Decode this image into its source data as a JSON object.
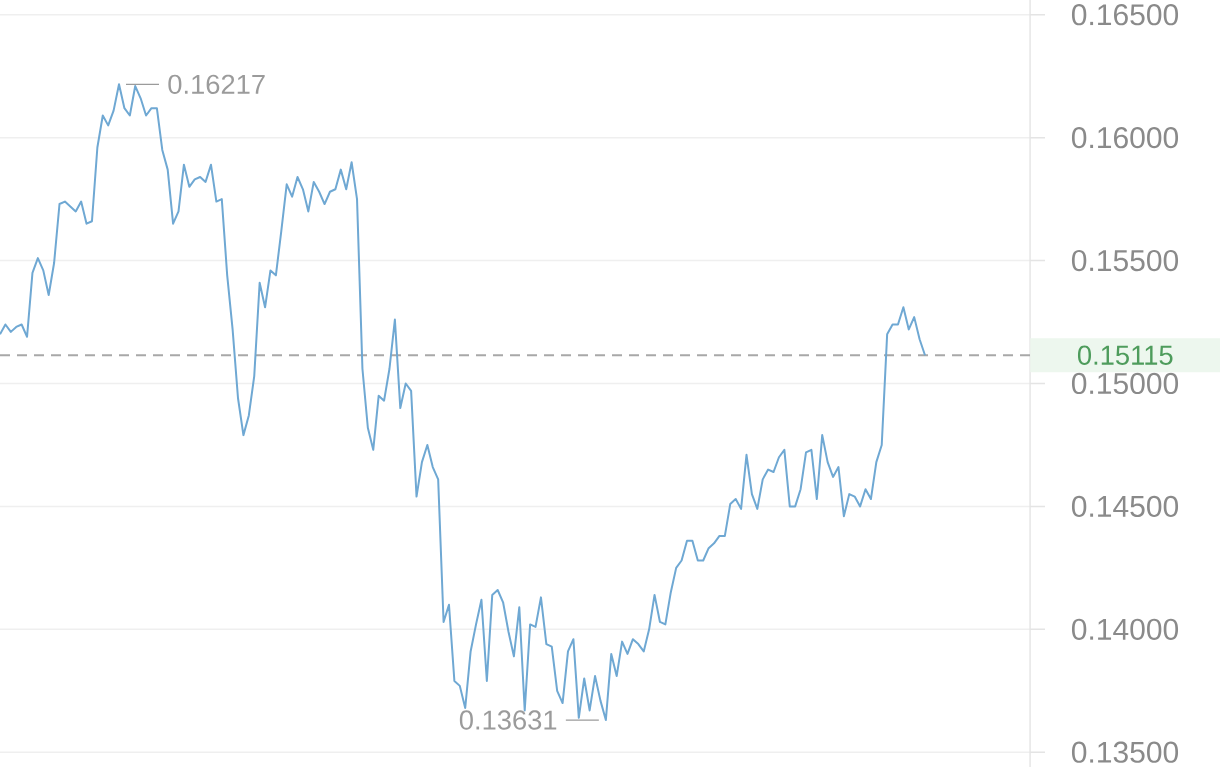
{
  "chart_data": {
    "type": "line",
    "categories": [
      null,
      null,
      null,
      null,
      null,
      null,
      null,
      null,
      null,
      null,
      null,
      null,
      null,
      null,
      null,
      null,
      null,
      null,
      null,
      null,
      null,
      null,
      null,
      null,
      null,
      null,
      null,
      null,
      null,
      null,
      null,
      null,
      null,
      null,
      null,
      null,
      null,
      null,
      null,
      null,
      null,
      null,
      null,
      null,
      null,
      null,
      null,
      null,
      null,
      null,
      null,
      null,
      null,
      null,
      null,
      null,
      null,
      null,
      null,
      null,
      null,
      null,
      null,
      null,
      null,
      null,
      null,
      null,
      null,
      null,
      null,
      null,
      null,
      null,
      null,
      null,
      null,
      null,
      null,
      null,
      null,
      null,
      null,
      null,
      null,
      null,
      null,
      null,
      null,
      null,
      null,
      null,
      null,
      null,
      null,
      null,
      null,
      null,
      null,
      null,
      null,
      null,
      null,
      null,
      null,
      null,
      null,
      null,
      null,
      null,
      null,
      null,
      null,
      null,
      null,
      null,
      null,
      null,
      null,
      null,
      null,
      null,
      null,
      null,
      null,
      null,
      null,
      null,
      null,
      null,
      null,
      null,
      null,
      null,
      null,
      null,
      null,
      null,
      null,
      null,
      null,
      null,
      null,
      null,
      null,
      null,
      null,
      null,
      null,
      null,
      null,
      null,
      null,
      null,
      null,
      null,
      null,
      null,
      null,
      null,
      null,
      null,
      null,
      null,
      null,
      null,
      null,
      null,
      null,
      null,
      null,
      null
    ],
    "series": [
      {
        "color": "#6fa8d3",
        "values": [
          0.152,
          0.1524,
          0.1521,
          0.1523,
          0.1524,
          0.1519,
          0.1545,
          0.1551,
          0.1546,
          0.1536,
          0.1549,
          0.1573,
          0.1574,
          0.1572,
          0.157,
          0.1574,
          0.1565,
          0.1566,
          0.1596,
          0.1609,
          0.1605,
          0.1611,
          0.16217,
          0.1612,
          0.1609,
          0.1621,
          0.1616,
          0.1609,
          0.1612,
          0.1612,
          0.1595,
          0.1587,
          0.1565,
          0.157,
          0.1589,
          0.158,
          0.1583,
          0.1584,
          0.1582,
          0.1589,
          0.1574,
          0.1575,
          0.1544,
          0.1522,
          0.1494,
          0.1479,
          0.1487,
          0.1503,
          0.1541,
          0.1531,
          0.1546,
          0.1544,
          0.1562,
          0.1581,
          0.1576,
          0.1584,
          0.1579,
          0.157,
          0.1582,
          0.1578,
          0.1573,
          0.1578,
          0.1579,
          0.1587,
          0.1579,
          0.159,
          0.1575,
          0.1506,
          0.1482,
          0.1473,
          0.1495,
          0.1493,
          0.1506,
          0.1526,
          0.149,
          0.15,
          0.1497,
          0.1454,
          0.1468,
          0.1475,
          0.1466,
          0.1461,
          0.1403,
          0.141,
          0.1379,
          0.1377,
          0.1368,
          0.1391,
          0.1402,
          0.1412,
          0.1379,
          0.1414,
          0.1416,
          0.1411,
          0.1399,
          0.1389,
          0.1409,
          0.1367,
          0.1402,
          0.1401,
          0.1413,
          0.1394,
          0.1393,
          0.1375,
          0.137,
          0.1391,
          0.1396,
          0.1364,
          0.138,
          0.1367,
          0.1381,
          0.1371,
          0.13631,
          0.139,
          0.1381,
          0.1395,
          0.139,
          0.1396,
          0.1394,
          0.1391,
          0.14,
          0.1414,
          0.1403,
          0.1402,
          0.1415,
          0.1425,
          0.1428,
          0.1436,
          0.1436,
          0.1428,
          0.1428,
          0.1433,
          0.1435,
          0.1438,
          0.1438,
          0.1451,
          0.1453,
          0.1449,
          0.1471,
          0.1455,
          0.1449,
          0.1461,
          0.1465,
          0.1464,
          0.147,
          0.1473,
          0.145,
          0.145,
          0.1457,
          0.1472,
          0.1473,
          0.1453,
          0.1479,
          0.1468,
          0.1462,
          0.1466,
          0.1446,
          0.1455,
          0.1454,
          0.145,
          0.1457,
          0.1453,
          0.1468,
          0.1475,
          0.152,
          0.1524,
          0.1524,
          0.1531,
          0.1522,
          0.1527,
          0.1518,
          0.15115
        ],
        "value_labels": [
          null,
          null,
          null,
          null,
          null,
          null,
          null,
          null,
          null,
          null,
          null,
          null,
          null,
          null,
          null,
          null,
          null,
          null,
          null,
          null,
          null,
          null,
          "0.16217",
          null,
          null,
          null,
          null,
          null,
          null,
          null,
          null,
          null,
          null,
          null,
          null,
          null,
          null,
          null,
          null,
          null,
          null,
          null,
          null,
          null,
          null,
          null,
          null,
          null,
          null,
          null,
          null,
          null,
          null,
          null,
          null,
          null,
          null,
          null,
          null,
          null,
          null,
          null,
          null,
          null,
          null,
          null,
          null,
          null,
          null,
          null,
          null,
          null,
          null,
          null,
          null,
          null,
          null,
          null,
          null,
          null,
          null,
          null,
          null,
          null,
          null,
          null,
          null,
          null,
          null,
          null,
          null,
          null,
          null,
          null,
          null,
          null,
          null,
          null,
          null,
          null,
          null,
          null,
          null,
          null,
          null,
          null,
          null,
          null,
          null,
          null,
          null,
          null,
          "0.13631",
          null,
          null,
          null,
          null,
          null,
          null,
          null,
          null,
          null,
          null,
          null,
          null,
          null,
          null,
          null,
          null,
          null,
          null,
          null,
          null,
          null,
          null,
          null,
          null,
          null,
          null,
          null,
          null,
          null,
          null,
          null,
          null,
          null,
          null,
          null,
          null,
          null,
          null,
          null,
          null,
          null,
          null,
          null,
          null,
          null,
          null,
          null,
          null,
          null,
          null,
          null,
          null,
          null,
          null,
          null,
          null,
          null,
          null,
          null
        ]
      }
    ],
    "ylim": [
      0.1344,
      0.1656
    ],
    "yticks": [
      {
        "value": 0.135,
        "label": "0.13500"
      },
      {
        "value": 0.14,
        "label": "0.14000"
      },
      {
        "value": 0.145,
        "label": "0.14500"
      },
      {
        "value": 0.15,
        "label": "0.15000"
      },
      {
        "value": 0.155,
        "label": "0.15500"
      },
      {
        "value": 0.16,
        "label": "0.16000"
      },
      {
        "value": 0.165,
        "label": "0.16500"
      }
    ],
    "grid": "y",
    "tick_labels": "y",
    "ref_lines": [
      {
        "axis": "y",
        "value": 0.15115,
        "label": "0.15115",
        "color": "#a8a8a8",
        "line_style": "dashed"
      }
    ]
  }
}
